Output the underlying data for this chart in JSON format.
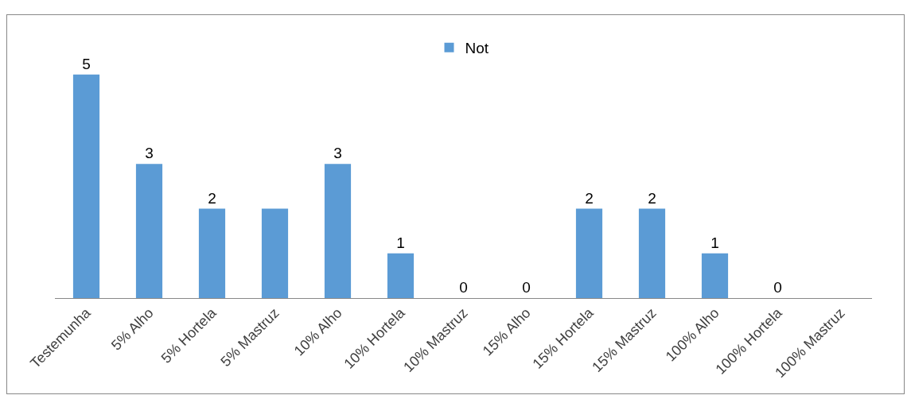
{
  "chart_data": {
    "type": "bar",
    "categories": [
      "Testemunha",
      "5% Alho",
      "5% Hortela",
      "5% Mastruz",
      "10% Alho",
      "10% Hortela",
      "10% Mastruz",
      "15% Alho",
      "15% Hortela",
      "15% Mastruz",
      "100% Alho",
      "100% Hortela",
      "100% Mastruz"
    ],
    "series": [
      {
        "name": "Not",
        "color": "#5b9bd5",
        "values": [
          5,
          3,
          2,
          2,
          3,
          1,
          0,
          0,
          2,
          2,
          1,
          0,
          0
        ],
        "value_labels": [
          "5",
          "3",
          "2",
          null,
          "3",
          "1",
          "0",
          "0",
          "2",
          "2",
          "1",
          "0",
          null
        ]
      }
    ],
    "legend": "top",
    "grid": false
  }
}
